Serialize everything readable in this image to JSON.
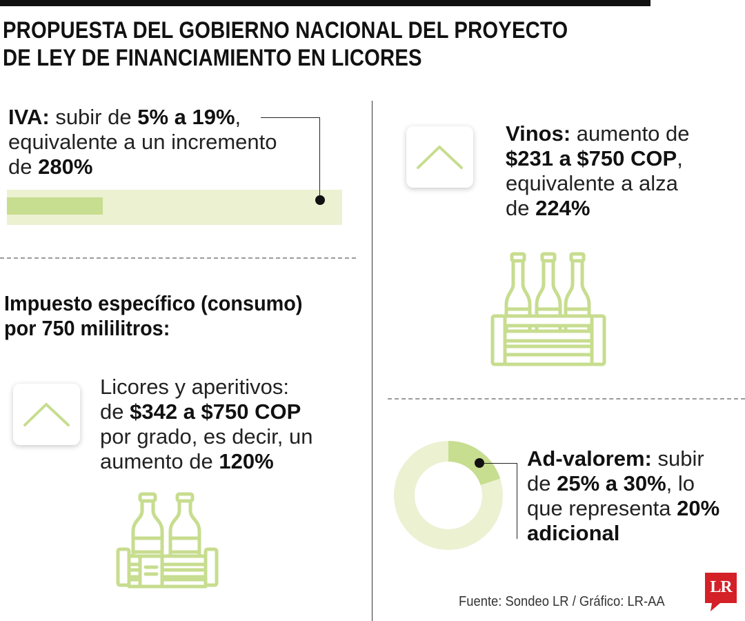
{
  "title": {
    "line1": "PROPUESTA DEL GOBIERNO NACIONAL DEL PROYECTO",
    "line2": "DE LEY DE FINANCIAMIENTO EN LICORES"
  },
  "iva": {
    "label": "IVA:",
    "t1": " subir de ",
    "from_to": "5% a 19%",
    "t2": ",",
    "line2": "equivalente a un incremento",
    "t3": "de ",
    "pct": "280%",
    "bar_current_pct": 5,
    "bar_target_pct": 19
  },
  "consumo": {
    "heading_line1": "Impuesto específico (consumo)",
    "heading_line2": "por 750 mililitros:"
  },
  "licores": {
    "line1": "Licores y aperitivos:",
    "t1": "de ",
    "range": "$342 a $750 COP",
    "line3": "por grado, es decir, un",
    "t2": "aumento de ",
    "pct": "120%",
    "icon": "chevron-up-icon"
  },
  "vinos": {
    "label": "Vinos:",
    "t1": " aumento de",
    "range": "$231 a $750 COP",
    "t2": ",",
    "line3": "equivalente a alza",
    "t3": "de ",
    "pct": "224%",
    "icon": "chevron-up-icon"
  },
  "advalorem": {
    "label": "Ad-valorem:",
    "t1": " subir",
    "t2": "de ",
    "from_to": "25% a 30%",
    "t3": ", lo",
    "t4": "que representa ",
    "pct": "20%",
    "adicional": "adicional",
    "donut_highlight_pct": 20
  },
  "source": "Fuente: Sondeo LR / Gráfico: LR-AA",
  "logo": "LR",
  "colors": {
    "accent": "#c7dd8f",
    "light": "#ecf1d2",
    "text": "#1a1a1a",
    "logo": "#d42027"
  }
}
